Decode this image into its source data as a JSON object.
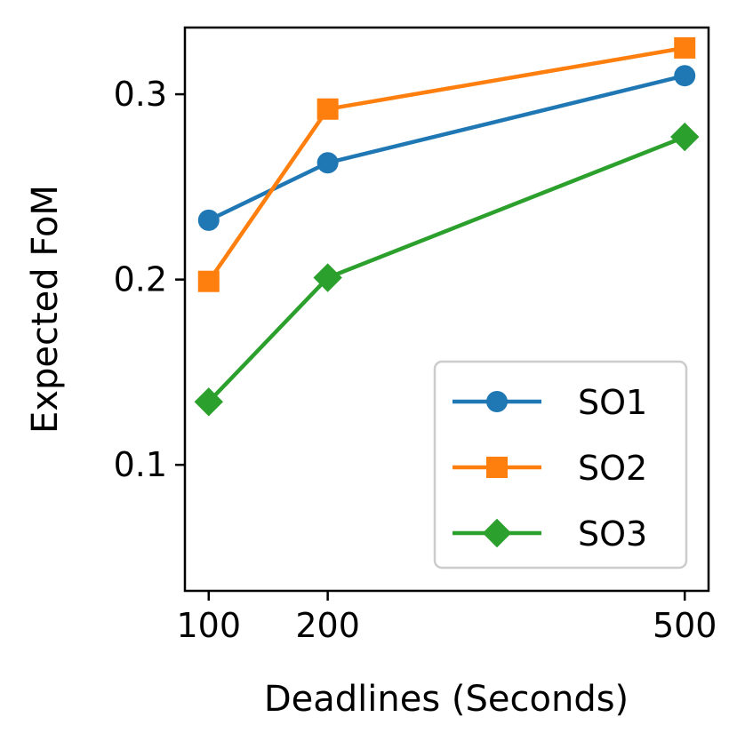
{
  "chart_data": {
    "type": "line",
    "title": "",
    "xlabel": "Deadlines (Seconds)",
    "ylabel": "Expected FoM",
    "x": [
      100,
      200,
      500
    ],
    "xticks": [
      100,
      200,
      500
    ],
    "xtick_labels": [
      "100",
      "200",
      "500"
    ],
    "xlim": [
      80,
      520
    ],
    "yticks": [
      0.1,
      0.2,
      0.3
    ],
    "ytick_labels": [
      "0.1",
      "0.2",
      "0.3"
    ],
    "ylim": [
      0.032,
      0.336
    ],
    "grid": false,
    "legend_position": "lower-right",
    "series": [
      {
        "name": "SO1",
        "values": [
          0.232,
          0.263,
          0.31
        ],
        "color": "#1f77b4",
        "marker": "circle"
      },
      {
        "name": "SO2",
        "values": [
          0.199,
          0.292,
          0.325
        ],
        "color": "#ff7f0e",
        "marker": "square"
      },
      {
        "name": "SO3",
        "values": [
          0.134,
          0.201,
          0.277
        ],
        "color": "#2ca02c",
        "marker": "diamond"
      }
    ]
  }
}
